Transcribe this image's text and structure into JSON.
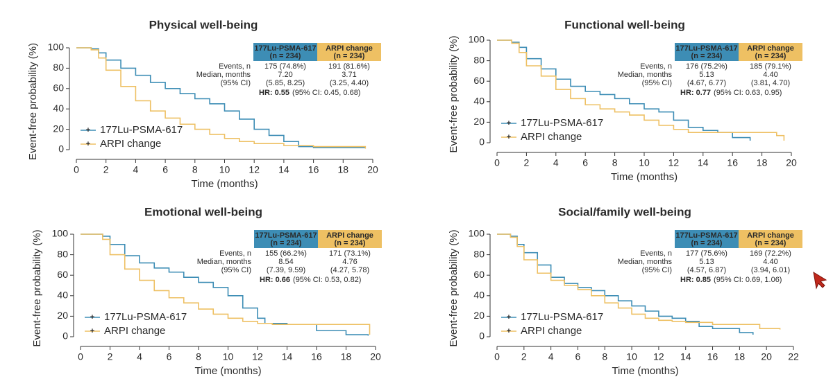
{
  "chart_data": [
    {
      "type": "line",
      "step": true,
      "title": "Physical well-being",
      "xlabel": "Time (months)",
      "ylabel": "Event-free probability (%)",
      "xlim": [
        0,
        20
      ],
      "xticks": [
        0,
        2,
        4,
        6,
        8,
        10,
        12,
        14,
        16,
        18,
        20
      ],
      "ylim": [
        0,
        100
      ],
      "yticks": [
        0,
        20,
        40,
        60,
        80,
        100
      ],
      "legend": "lower left",
      "series": [
        {
          "name": "177Lu-PSMA-617",
          "color": "#3d8db5",
          "x": [
            0,
            1,
            1.5,
            2,
            3,
            4,
            5,
            6,
            7,
            8,
            9,
            10,
            11,
            12,
            13,
            14,
            15,
            16,
            19.5
          ],
          "values": [
            100,
            99,
            95,
            88,
            80,
            73,
            66,
            60,
            55,
            50,
            45,
            38,
            30,
            20,
            14,
            8,
            3,
            2,
            2
          ]
        },
        {
          "name": "ARPI change",
          "color": "#eec063",
          "x": [
            0,
            1,
            1.5,
            2,
            3,
            4,
            5,
            6,
            7,
            8,
            9,
            10,
            11,
            12,
            14,
            16,
            19.5
          ],
          "values": [
            100,
            98,
            90,
            78,
            62,
            48,
            38,
            31,
            25,
            20,
            15,
            11,
            8,
            6,
            4,
            3,
            1
          ]
        }
      ],
      "table": {
        "headers": [
          [
            "177Lu-PSMA-617",
            "(n = 234)"
          ],
          [
            "ARPI change",
            "(n = 234)"
          ]
        ],
        "events_label": "Events, n",
        "events": [
          "175 (74.8%)",
          "191 (81.6%)"
        ],
        "median_label": [
          "Median, months",
          "(95% CI)"
        ],
        "median": [
          [
            "7.20",
            "(5.85, 8.25)"
          ],
          [
            "3.71",
            "(3.25, 4.40)"
          ]
        ],
        "hr": [
          "HR: 0.55",
          "(95% CI: 0.45, 0.68)"
        ]
      }
    },
    {
      "type": "line",
      "step": true,
      "title": "Functional well-being",
      "xlabel": "Time (months)",
      "ylabel": "Event-free probability (%)",
      "xlim": [
        0,
        20
      ],
      "xticks": [
        0,
        2,
        4,
        6,
        8,
        10,
        12,
        14,
        16,
        18,
        20
      ],
      "ylim": [
        0,
        100
      ],
      "yticks": [
        0,
        20,
        40,
        60,
        80,
        100
      ],
      "legend": "lower left",
      "series": [
        {
          "name": "177Lu-PSMA-617",
          "color": "#3d8db5",
          "x": [
            0,
            1,
            1.5,
            2,
            3,
            4,
            5,
            6,
            7,
            8,
            9,
            10,
            11,
            12,
            13,
            14,
            15,
            16,
            17.2
          ],
          "values": [
            100,
            98,
            93,
            82,
            72,
            62,
            55,
            50,
            47,
            43,
            38,
            33,
            30,
            22,
            15,
            12,
            10,
            5,
            2
          ]
        },
        {
          "name": "ARPI change",
          "color": "#eec063",
          "x": [
            0,
            1,
            1.5,
            2,
            3,
            4,
            5,
            6,
            7,
            8,
            9,
            10,
            11,
            12,
            13,
            16,
            19,
            19.5
          ],
          "values": [
            100,
            97,
            88,
            75,
            65,
            52,
            43,
            37,
            33,
            30,
            27,
            22,
            17,
            13,
            10,
            10,
            7,
            2
          ]
        }
      ],
      "table": {
        "headers": [
          [
            "177Lu-PSMA-617",
            "(n = 234)"
          ],
          [
            "ARPI change",
            "(n = 234)"
          ]
        ],
        "events_label": "Events, n",
        "events": [
          "176 (75.2%)",
          "185 (79.1%)"
        ],
        "median_label": [
          "Median, months",
          "(95% CI)"
        ],
        "median": [
          [
            "5.13",
            "(4.67, 6.77)"
          ],
          [
            "4.40",
            "(3.81, 4.70)"
          ]
        ],
        "hr": [
          "HR: 0.77",
          "(95% CI: 0.63, 0.95)"
        ]
      }
    },
    {
      "type": "line",
      "step": true,
      "title": "Emotional well-being",
      "xlabel": "Time (months)",
      "ylabel": "Event-free probability (%)",
      "xlim": [
        0,
        20
      ],
      "xticks": [
        0,
        2,
        4,
        6,
        8,
        10,
        12,
        14,
        16,
        18,
        20
      ],
      "ylim": [
        0,
        100
      ],
      "yticks": [
        0,
        20,
        40,
        60,
        80,
        100
      ],
      "legend": "lower left",
      "series": [
        {
          "name": "177Lu-PSMA-617",
          "color": "#3d8db5",
          "x": [
            0,
            1.5,
            2,
            3,
            4,
            5,
            6,
            7,
            8,
            9,
            10,
            11,
            12,
            12.5,
            14,
            16,
            18,
            19.5
          ],
          "values": [
            100,
            98,
            90,
            79,
            72,
            67,
            63,
            58,
            53,
            48,
            40,
            28,
            18,
            13,
            12,
            6,
            2,
            1
          ]
        },
        {
          "name": "ARPI change",
          "color": "#eec063",
          "x": [
            0,
            1.5,
            2,
            3,
            4,
            5,
            6,
            7,
            8,
            9,
            10,
            11,
            12,
            13,
            19.5,
            19.6
          ],
          "values": [
            100,
            95,
            80,
            66,
            55,
            45,
            38,
            33,
            27,
            22,
            18,
            15,
            13,
            12,
            12,
            2
          ]
        }
      ],
      "table": {
        "headers": [
          [
            "177Lu-PSMA-617",
            "(n = 234)"
          ],
          [
            "ARPI change",
            "(n = 234)"
          ]
        ],
        "events_label": "Events, n",
        "events": [
          "155 (66.2%)",
          "171 (73.1%)"
        ],
        "median_label": [
          "Median, months",
          "(95% CI)"
        ],
        "median": [
          [
            "8.54",
            "(7.39, 9.59)"
          ],
          [
            "4.76",
            "(4.27, 5.78)"
          ]
        ],
        "hr": [
          "HR: 0.66",
          "(95% CI: 0.53, 0.82)"
        ]
      }
    },
    {
      "type": "line",
      "step": true,
      "title": "Social/family well-being",
      "xlabel": "Time (months)",
      "ylabel": "Event-free probability (%)",
      "xlim": [
        0,
        22
      ],
      "xticks": [
        0,
        2,
        4,
        6,
        8,
        10,
        12,
        14,
        16,
        18,
        20,
        22
      ],
      "ylim": [
        0,
        100
      ],
      "yticks": [
        0,
        20,
        40,
        60,
        80,
        100
      ],
      "legend": "lower left",
      "series": [
        {
          "name": "177Lu-PSMA-617",
          "color": "#3d8db5",
          "x": [
            0,
            1,
            1.5,
            2,
            3,
            4,
            5,
            6,
            7,
            8,
            9,
            10,
            11,
            12,
            13,
            14,
            15,
            16,
            18,
            19
          ],
          "values": [
            100,
            98,
            90,
            82,
            70,
            58,
            52,
            48,
            45,
            40,
            35,
            30,
            25,
            20,
            18,
            15,
            10,
            8,
            4,
            2
          ]
        },
        {
          "name": "ARPI change",
          "color": "#eec063",
          "x": [
            0,
            1,
            1.5,
            2,
            3,
            4,
            5,
            6,
            7,
            8,
            9,
            10,
            11,
            12,
            13,
            14,
            16,
            19,
            19.5,
            21
          ],
          "values": [
            100,
            97,
            88,
            75,
            62,
            55,
            50,
            46,
            40,
            33,
            28,
            22,
            18,
            16,
            15,
            14,
            12,
            12,
            8,
            7
          ]
        }
      ],
      "table": {
        "headers": [
          [
            "177Lu-PSMA-617",
            "(n = 234)"
          ],
          [
            "ARPI change",
            "(n = 234)"
          ]
        ],
        "events_label": "Events, n",
        "events": [
          "177 (75.6%)",
          "169 (72.2%)"
        ],
        "median_label": [
          "Median, months",
          "(95% CI)"
        ],
        "median": [
          [
            "5.13",
            "(4.57, 6.87)"
          ],
          [
            "4.40",
            "(3.94, 6.01)"
          ]
        ],
        "hr": [
          "HR: 0.85",
          "(95% CI: 0.69, 1.06)"
        ]
      }
    }
  ]
}
